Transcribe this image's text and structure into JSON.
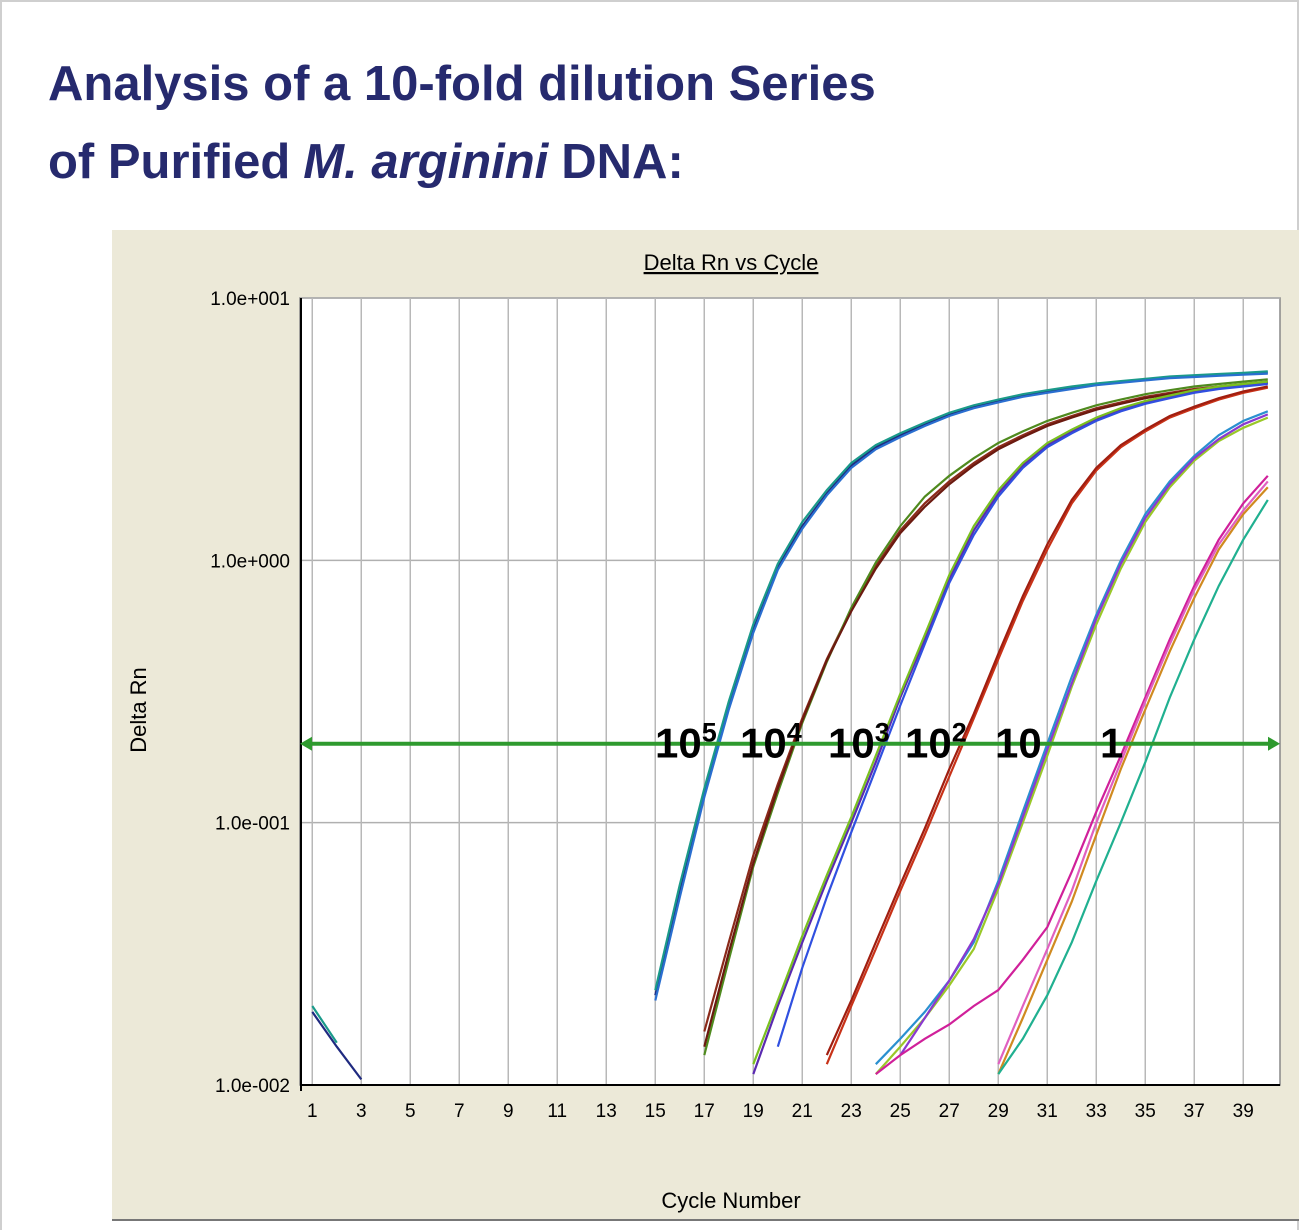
{
  "slide_title": {
    "line1": "Analysis of a 10-fold dilution Series",
    "line2_start": "of Purified",
    "line2_italic": "M. arginini",
    "line2_end": "DNA:"
  },
  "chart_data": {
    "type": "line",
    "title": "Delta Rn vs Cycle",
    "x_label": "Cycle Number",
    "y_label": "Delta Rn",
    "log_y": true,
    "grid": true,
    "x": [
      1,
      2,
      3,
      4,
      5,
      6,
      7,
      8,
      9,
      10,
      11,
      12,
      13,
      14,
      15,
      16,
      17,
      18,
      19,
      20,
      21,
      22,
      23,
      24,
      25,
      26,
      27,
      28,
      29,
      30,
      31,
      32,
      33,
      34,
      35,
      36,
      37,
      38,
      39,
      40
    ],
    "xlim": [
      0.5,
      40.5
    ],
    "xticks": [
      1,
      3,
      5,
      7,
      9,
      11,
      13,
      15,
      17,
      19,
      21,
      23,
      25,
      27,
      29,
      31,
      33,
      35,
      37,
      39
    ],
    "ylim": [
      0.01,
      10
    ],
    "yticks": [
      {
        "value": 10,
        "label": "1.0e+001"
      },
      {
        "value": 1,
        "label": "1.0e+000"
      },
      {
        "value": 0.1,
        "label": "1.0e-001"
      },
      {
        "value": 0.01,
        "label": "1.0e-002"
      }
    ],
    "threshold": 0.2,
    "threshold_color": "#2e9a2e",
    "annotations": [
      {
        "text": "10",
        "sup": "5"
      },
      {
        "text": "10",
        "sup": "4"
      },
      {
        "text": "10",
        "sup": "3"
      },
      {
        "text": "10",
        "sup": "2"
      },
      {
        "text": "10"
      },
      {
        "text": "1"
      }
    ],
    "series": [
      {
        "color": "#1f2a80",
        "values": [
          0.019,
          0.014,
          0.0105,
          null,
          null,
          null,
          null,
          null,
          null,
          null,
          null,
          null,
          null,
          null,
          0.022,
          0.055,
          0.13,
          0.28,
          0.55,
          0.95,
          1.35,
          1.8,
          2.3,
          2.7,
          3.0,
          3.3,
          3.6,
          3.85,
          4.05,
          4.25,
          4.4,
          4.55,
          4.7,
          4.8,
          4.9,
          5.0,
          5.05,
          5.1,
          5.15,
          5.2
        ]
      },
      {
        "color": "#1a9a8a",
        "values": [
          0.02,
          0.0145,
          null,
          null,
          null,
          null,
          null,
          null,
          null,
          null,
          null,
          null,
          null,
          null,
          0.023,
          0.058,
          0.135,
          0.29,
          0.57,
          0.97,
          1.4,
          1.85,
          2.35,
          2.75,
          3.05,
          3.35,
          3.65,
          3.9,
          4.1,
          4.3,
          4.45,
          4.6,
          4.72,
          4.82,
          4.92,
          5.02,
          5.08,
          5.13,
          5.18,
          5.25
        ]
      },
      {
        "color": "#2a6fd0",
        "values": [
          null,
          null,
          null,
          null,
          null,
          null,
          null,
          null,
          null,
          null,
          null,
          null,
          null,
          null,
          0.021,
          0.052,
          0.125,
          0.27,
          0.53,
          0.92,
          1.32,
          1.77,
          2.25,
          2.65,
          2.95,
          3.25,
          3.55,
          3.8,
          4.0,
          4.2,
          4.35,
          4.5,
          4.65,
          4.75,
          4.85,
          4.95,
          5.0,
          5.05,
          5.1,
          5.15
        ]
      },
      {
        "color": "#8b2a1a",
        "values": [
          null,
          null,
          null,
          null,
          null,
          null,
          null,
          null,
          null,
          null,
          null,
          null,
          null,
          null,
          null,
          null,
          0.016,
          0.035,
          0.075,
          0.14,
          0.25,
          0.42,
          0.65,
          0.95,
          1.3,
          1.65,
          2.0,
          2.35,
          2.7,
          3.0,
          3.3,
          3.55,
          3.8,
          4.0,
          4.2,
          4.35,
          4.5,
          4.6,
          4.7,
          4.8
        ]
      },
      {
        "color": "#4f8a1e",
        "values": [
          null,
          null,
          null,
          null,
          null,
          null,
          null,
          null,
          null,
          null,
          null,
          null,
          null,
          null,
          null,
          null,
          0.013,
          0.03,
          0.068,
          0.13,
          0.24,
          0.41,
          0.66,
          0.98,
          1.35,
          1.75,
          2.1,
          2.45,
          2.8,
          3.1,
          3.4,
          3.65,
          3.9,
          4.1,
          4.3,
          4.45,
          4.6,
          4.7,
          4.8,
          4.9
        ]
      },
      {
        "color": "#6b1a10",
        "values": [
          null,
          null,
          null,
          null,
          null,
          null,
          null,
          null,
          null,
          null,
          null,
          null,
          null,
          null,
          null,
          null,
          0.014,
          0.032,
          0.07,
          0.135,
          0.245,
          0.415,
          0.64,
          0.93,
          1.27,
          1.6,
          1.95,
          2.3,
          2.65,
          2.95,
          3.25,
          3.5,
          3.75,
          3.95,
          4.15,
          4.3,
          4.45,
          4.55,
          4.65,
          4.75
        ]
      },
      {
        "color": "#5a2ab0",
        "values": [
          null,
          null,
          null,
          null,
          null,
          null,
          null,
          null,
          null,
          null,
          null,
          null,
          null,
          null,
          null,
          null,
          null,
          null,
          0.011,
          0.02,
          0.035,
          0.06,
          0.1,
          0.17,
          0.3,
          0.5,
          0.85,
          1.3,
          1.8,
          2.3,
          2.75,
          3.1,
          3.45,
          3.75,
          4.0,
          4.2,
          4.4,
          4.55,
          4.65,
          4.75
        ]
      },
      {
        "color": "#7ac020",
        "values": [
          null,
          null,
          null,
          null,
          null,
          null,
          null,
          null,
          null,
          null,
          null,
          null,
          null,
          null,
          null,
          null,
          null,
          null,
          0.012,
          0.021,
          0.037,
          0.063,
          0.105,
          0.18,
          0.31,
          0.52,
          0.88,
          1.35,
          1.85,
          2.35,
          2.8,
          3.15,
          3.5,
          3.8,
          4.05,
          4.25,
          4.45,
          4.6,
          4.7,
          4.8
        ]
      },
      {
        "color": "#3050e0",
        "values": [
          null,
          null,
          null,
          null,
          null,
          null,
          null,
          null,
          null,
          null,
          null,
          null,
          null,
          null,
          null,
          null,
          null,
          null,
          null,
          0.014,
          0.028,
          0.052,
          0.092,
          0.16,
          0.28,
          0.48,
          0.82,
          1.25,
          1.75,
          2.25,
          2.7,
          3.05,
          3.4,
          3.7,
          3.95,
          4.15,
          4.35,
          4.5,
          4.6,
          4.7
        ]
      },
      {
        "color": "#c83218",
        "values": [
          null,
          null,
          null,
          null,
          null,
          null,
          null,
          null,
          null,
          null,
          null,
          null,
          null,
          null,
          null,
          null,
          null,
          null,
          null,
          null,
          null,
          0.012,
          0.02,
          0.033,
          0.055,
          0.09,
          0.15,
          0.25,
          0.42,
          0.7,
          1.1,
          1.65,
          2.2,
          2.7,
          3.1,
          3.5,
          3.8,
          4.1,
          4.35,
          4.55
        ]
      },
      {
        "color": "#a01e10",
        "values": [
          null,
          null,
          null,
          null,
          null,
          null,
          null,
          null,
          null,
          null,
          null,
          null,
          null,
          null,
          null,
          null,
          null,
          null,
          null,
          null,
          null,
          0.013,
          0.021,
          0.035,
          0.058,
          0.095,
          0.16,
          0.26,
          0.44,
          0.73,
          1.15,
          1.7,
          2.25,
          2.75,
          3.15,
          3.55,
          3.85,
          4.15,
          4.4,
          4.6
        ]
      },
      {
        "color": "#2a90d0",
        "values": [
          null,
          null,
          null,
          null,
          null,
          null,
          null,
          null,
          null,
          null,
          null,
          null,
          null,
          null,
          null,
          null,
          null,
          null,
          null,
          null,
          null,
          null,
          null,
          0.012,
          0.015,
          0.019,
          0.025,
          0.035,
          0.06,
          0.11,
          0.2,
          0.36,
          0.62,
          1.0,
          1.5,
          2.0,
          2.5,
          3.0,
          3.4,
          3.7
        ]
      },
      {
        "color": "#9ac828",
        "values": [
          null,
          null,
          null,
          null,
          null,
          null,
          null,
          null,
          null,
          null,
          null,
          null,
          null,
          null,
          null,
          null,
          null,
          null,
          null,
          null,
          null,
          null,
          null,
          0.011,
          0.014,
          0.018,
          0.024,
          0.033,
          0.056,
          0.1,
          0.18,
          0.33,
          0.57,
          0.93,
          1.4,
          1.9,
          2.4,
          2.85,
          3.2,
          3.5
        ]
      },
      {
        "color": "#8a3ad0",
        "values": [
          null,
          null,
          null,
          null,
          null,
          null,
          null,
          null,
          null,
          null,
          null,
          null,
          null,
          null,
          null,
          null,
          null,
          null,
          null,
          null,
          null,
          null,
          null,
          null,
          0.013,
          0.018,
          0.025,
          0.036,
          0.058,
          0.105,
          0.19,
          0.34,
          0.6,
          0.97,
          1.45,
          1.95,
          2.45,
          2.9,
          3.3,
          3.6
        ]
      },
      {
        "color": "#d0209a",
        "values": [
          null,
          null,
          null,
          null,
          null,
          null,
          null,
          null,
          null,
          null,
          null,
          null,
          null,
          null,
          null,
          null,
          null,
          null,
          null,
          null,
          null,
          null,
          null,
          0.011,
          0.013,
          0.015,
          0.017,
          0.02,
          0.023,
          0.03,
          0.04,
          0.065,
          0.11,
          0.18,
          0.3,
          0.5,
          0.8,
          1.2,
          1.65,
          2.1
        ]
      },
      {
        "color": "#d08a20",
        "values": [
          null,
          null,
          null,
          null,
          null,
          null,
          null,
          null,
          null,
          null,
          null,
          null,
          null,
          null,
          null,
          null,
          null,
          null,
          null,
          null,
          null,
          null,
          null,
          null,
          null,
          null,
          null,
          null,
          0.011,
          0.018,
          0.03,
          0.05,
          0.09,
          0.16,
          0.27,
          0.45,
          0.72,
          1.1,
          1.5,
          1.9
        ]
      },
      {
        "color": "#20b090",
        "values": [
          null,
          null,
          null,
          null,
          null,
          null,
          null,
          null,
          null,
          null,
          null,
          null,
          null,
          null,
          null,
          null,
          null,
          null,
          null,
          null,
          null,
          null,
          null,
          null,
          null,
          null,
          null,
          null,
          0.011,
          0.015,
          0.022,
          0.035,
          0.06,
          0.1,
          0.17,
          0.3,
          0.5,
          0.8,
          1.2,
          1.7
        ]
      },
      {
        "color": "#e060c0",
        "values": [
          null,
          null,
          null,
          null,
          null,
          null,
          null,
          null,
          null,
          null,
          null,
          null,
          null,
          null,
          null,
          null,
          null,
          null,
          null,
          null,
          null,
          null,
          null,
          null,
          null,
          null,
          null,
          null,
          0.012,
          0.02,
          0.033,
          0.055,
          0.1,
          0.17,
          0.29,
          0.48,
          0.77,
          1.15,
          1.55,
          2.0
        ]
      }
    ]
  }
}
